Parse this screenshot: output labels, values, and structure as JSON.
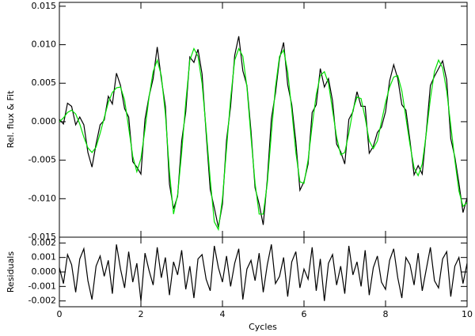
{
  "chart_data": [
    {
      "type": "line",
      "ylabel": "Rel. flux & Fit",
      "xlim": [
        0,
        10
      ],
      "ylim": [
        -0.015,
        0.0155
      ],
      "yticks": [
        {
          "value": -0.015,
          "label": "-0.015"
        },
        {
          "value": -0.01,
          "label": "-0.010"
        },
        -0.005,
        {
          "value": 0,
          "label": "0.000"
        },
        0.005,
        {
          "value": 0.01,
          "label": "0.010"
        },
        0.015
      ],
      "x": [
        0,
        0.1,
        0.2,
        0.3,
        0.4,
        0.5,
        0.6,
        0.7,
        0.8,
        0.9,
        1,
        1.1,
        1.2,
        1.3,
        1.4,
        1.5,
        1.6,
        1.7,
        1.8,
        1.9,
        2,
        2.1,
        2.2,
        2.3,
        2.4,
        2.5,
        2.6,
        2.7,
        2.8,
        2.9,
        3,
        3.1,
        3.2,
        3.3,
        3.4,
        3.5,
        3.6,
        3.7,
        3.8,
        3.9,
        4,
        4.1,
        4.2,
        4.3,
        4.4,
        4.5,
        4.6,
        4.7,
        4.8,
        4.9,
        5,
        5.1,
        5.2,
        5.3,
        5.4,
        5.5,
        5.6,
        5.7,
        5.8,
        5.9,
        6,
        6.1,
        6.2,
        6.3,
        6.4,
        6.5,
        6.6,
        6.7,
        6.8,
        6.9,
        7,
        7.1,
        7.2,
        7.3,
        7.4,
        7.5,
        7.6,
        7.7,
        7.8,
        7.9,
        8,
        8.1,
        8.2,
        8.3,
        8.4,
        8.5,
        8.6,
        8.7,
        8.8,
        8.9,
        9,
        9.1,
        9.2,
        9.3,
        9.4,
        9.5,
        9.6,
        9.7,
        9.8,
        9.9,
        10
      ],
      "series": [
        {
          "color": "#000000",
          "values": [
            0.0003,
            -0.0003,
            0.0024,
            0.002,
            -0.0004,
            0.0006,
            -0.0004,
            -0.004,
            -0.0059,
            -0.0029,
            -0.0004,
            0.0002,
            0.0033,
            0.0023,
            0.0063,
            0.0047,
            0.0017,
            0.0006,
            -0.0052,
            -0.0059,
            -0.0068,
            0.0003,
            0.0033,
            0.0056,
            0.0097,
            0.0056,
            0.002,
            -0.0081,
            -0.0113,
            -0.0097,
            -0.0025,
            0.0013,
            0.0084,
            0.0077,
            0.0094,
            0.0062,
            -0.0015,
            -0.0088,
            -0.0112,
            -0.0137,
            -0.0107,
            -0.0024,
            0.002,
            0.0086,
            0.0111,
            0.0066,
            0.0047,
            -0.0012,
            -0.0086,
            -0.0107,
            -0.0134,
            -0.0075,
            0.0004,
            0.0037,
            0.0082,
            0.0103,
            0.0048,
            0.0022,
            -0.0026,
            -0.0089,
            -0.0078,
            -0.0055,
            0.0012,
            0.0022,
            0.0069,
            0.0045,
            0.0056,
            0.0027,
            -0.0029,
            -0.0039,
            -0.0055,
            0.0003,
            0.0013,
            0.0039,
            0.002,
            0.002,
            -0.0041,
            -0.0032,
            -0.0014,
            -0.0007,
            0.0013,
            0.0053,
            0.0074,
            0.0056,
            0.0022,
            0.0015,
            -0.0025,
            -0.0069,
            -0.0057,
            -0.0068,
            -0.0013,
            0.0047,
            0.0059,
            0.0069,
            0.0079,
            0.0054,
            -0.0022,
            -0.0046,
            -0.008,
            -0.0118,
            -0.0099
          ]
        },
        {
          "color": "#00e000",
          "values": [
            0,
            0.0005,
            0.0012,
            0.0015,
            0.001,
            -0.0003,
            -0.002,
            -0.0034,
            -0.004,
            -0.0033,
            -0.0015,
            0.0005,
            0.0025,
            0.0038,
            0.0044,
            0.0045,
            0.0028,
            -0.0008,
            -0.0045,
            -0.0065,
            -0.0048,
            -0.001,
            0.0032,
            0.0065,
            0.008,
            0.006,
            0.001,
            -0.0065,
            -0.012,
            -0.0095,
            -0.004,
            0.0025,
            0.008,
            0.0095,
            0.0085,
            0.005,
            -0.001,
            -0.0075,
            -0.013,
            -0.014,
            -0.01,
            -0.0035,
            0.003,
            0.008,
            0.0095,
            0.0085,
            0.0045,
            -0.002,
            -0.008,
            -0.012,
            -0.012,
            -0.008,
            -0.0015,
            0.0045,
            0.0085,
            0.0093,
            0.0065,
            0.0015,
            -0.004,
            -0.0078,
            -0.008,
            -0.005,
            -0.0005,
            0.0035,
            0.006,
            0.0065,
            0.005,
            0.0015,
            -0.002,
            -0.0043,
            -0.004,
            -0.0015,
            0.0015,
            0.0032,
            0.003,
            0.0005,
            -0.0025,
            -0.0035,
            -0.0025,
            0,
            0.0025,
            0.0045,
            0.0058,
            0.006,
            0.004,
            0.0005,
            -0.003,
            -0.006,
            -0.007,
            -0.0055,
            -0.0015,
            0.003,
            0.0065,
            0.008,
            0.007,
            0.004,
            -0.0005,
            -0.005,
            -0.009,
            -0.011,
            -0.0105
          ]
        }
      ]
    },
    {
      "type": "line",
      "ylabel": "Residuals",
      "xlabel": "Cycles",
      "xlim": [
        0,
        10
      ],
      "ylim": [
        -0.0024,
        0.0024
      ],
      "xticks": [
        0,
        2,
        4,
        6,
        8,
        10
      ],
      "yticks": [
        -0.002,
        -0.001,
        {
          "value": 0,
          "label": "0.000"
        },
        0.001,
        0.002
      ],
      "x": [
        0,
        0.1,
        0.2,
        0.3,
        0.4,
        0.5,
        0.6,
        0.7,
        0.8,
        0.9,
        1,
        1.1,
        1.2,
        1.3,
        1.4,
        1.5,
        1.6,
        1.7,
        1.8,
        1.9,
        2,
        2.1,
        2.2,
        2.3,
        2.4,
        2.5,
        2.6,
        2.7,
        2.8,
        2.9,
        3,
        3.1,
        3.2,
        3.3,
        3.4,
        3.5,
        3.6,
        3.7,
        3.8,
        3.9,
        4,
        4.1,
        4.2,
        4.3,
        4.4,
        4.5,
        4.6,
        4.7,
        4.8,
        4.9,
        5,
        5.1,
        5.2,
        5.3,
        5.4,
        5.5,
        5.6,
        5.7,
        5.8,
        5.9,
        6,
        6.1,
        6.2,
        6.3,
        6.4,
        6.5,
        6.6,
        6.7,
        6.8,
        6.9,
        7,
        7.1,
        7.2,
        7.3,
        7.4,
        7.5,
        7.6,
        7.7,
        7.8,
        7.9,
        8,
        8.1,
        8.2,
        8.3,
        8.4,
        8.5,
        8.6,
        8.7,
        8.8,
        8.9,
        9,
        9.1,
        9.2,
        9.3,
        9.4,
        9.5,
        9.6,
        9.7,
        9.8,
        9.9,
        10
      ],
      "color": "#000000",
      "values": [
        0.0003,
        -0.0008,
        0.0012,
        0.0005,
        -0.0014,
        0.0009,
        0.0016,
        -0.0006,
        -0.0019,
        0.0004,
        0.0011,
        -0.0003,
        0.0008,
        -0.0015,
        0.0019,
        0.0002,
        -0.0011,
        0.0014,
        -0.0007,
        0.0006,
        -0.002,
        0.0013,
        0.0001,
        -0.0009,
        0.0017,
        -0.0004,
        0.001,
        -0.0016,
        0.0007,
        -0.0002,
        0.0015,
        -0.0012,
        0.0004,
        -0.0018,
        0.0009,
        0.0012,
        -0.0005,
        -0.0013,
        0.0018,
        0.0003,
        -0.0007,
        0.0011,
        -0.001,
        0.0006,
        0.0016,
        -0.0019,
        0.0002,
        0.0008,
        -0.0006,
        0.0013,
        -0.0014,
        0.0005,
        0.0019,
        -0.0008,
        -0.0003,
        0.001,
        -0.0017,
        0.0007,
        0.0014,
        -0.0011,
        0.0002,
        -0.0005,
        0.0017,
        -0.0013,
        0.0009,
        -0.002,
        0.0006,
        0.0012,
        -0.0009,
        0.0004,
        -0.0015,
        0.0018,
        -0.0002,
        0.0007,
        -0.001,
        0.0015,
        -0.0016,
        0.0003,
        0.0011,
        -0.0007,
        -0.0012,
        0.0008,
        0.0016,
        -0.0004,
        -0.0018,
        0.001,
        0.0005,
        -0.0009,
        0.0013,
        -0.0013,
        0.0002,
        0.0017,
        -0.0006,
        -0.0011,
        0.0009,
        0.0014,
        -0.0017,
        0.0004,
        0.001,
        -0.0008,
        0.0006
      ]
    }
  ]
}
